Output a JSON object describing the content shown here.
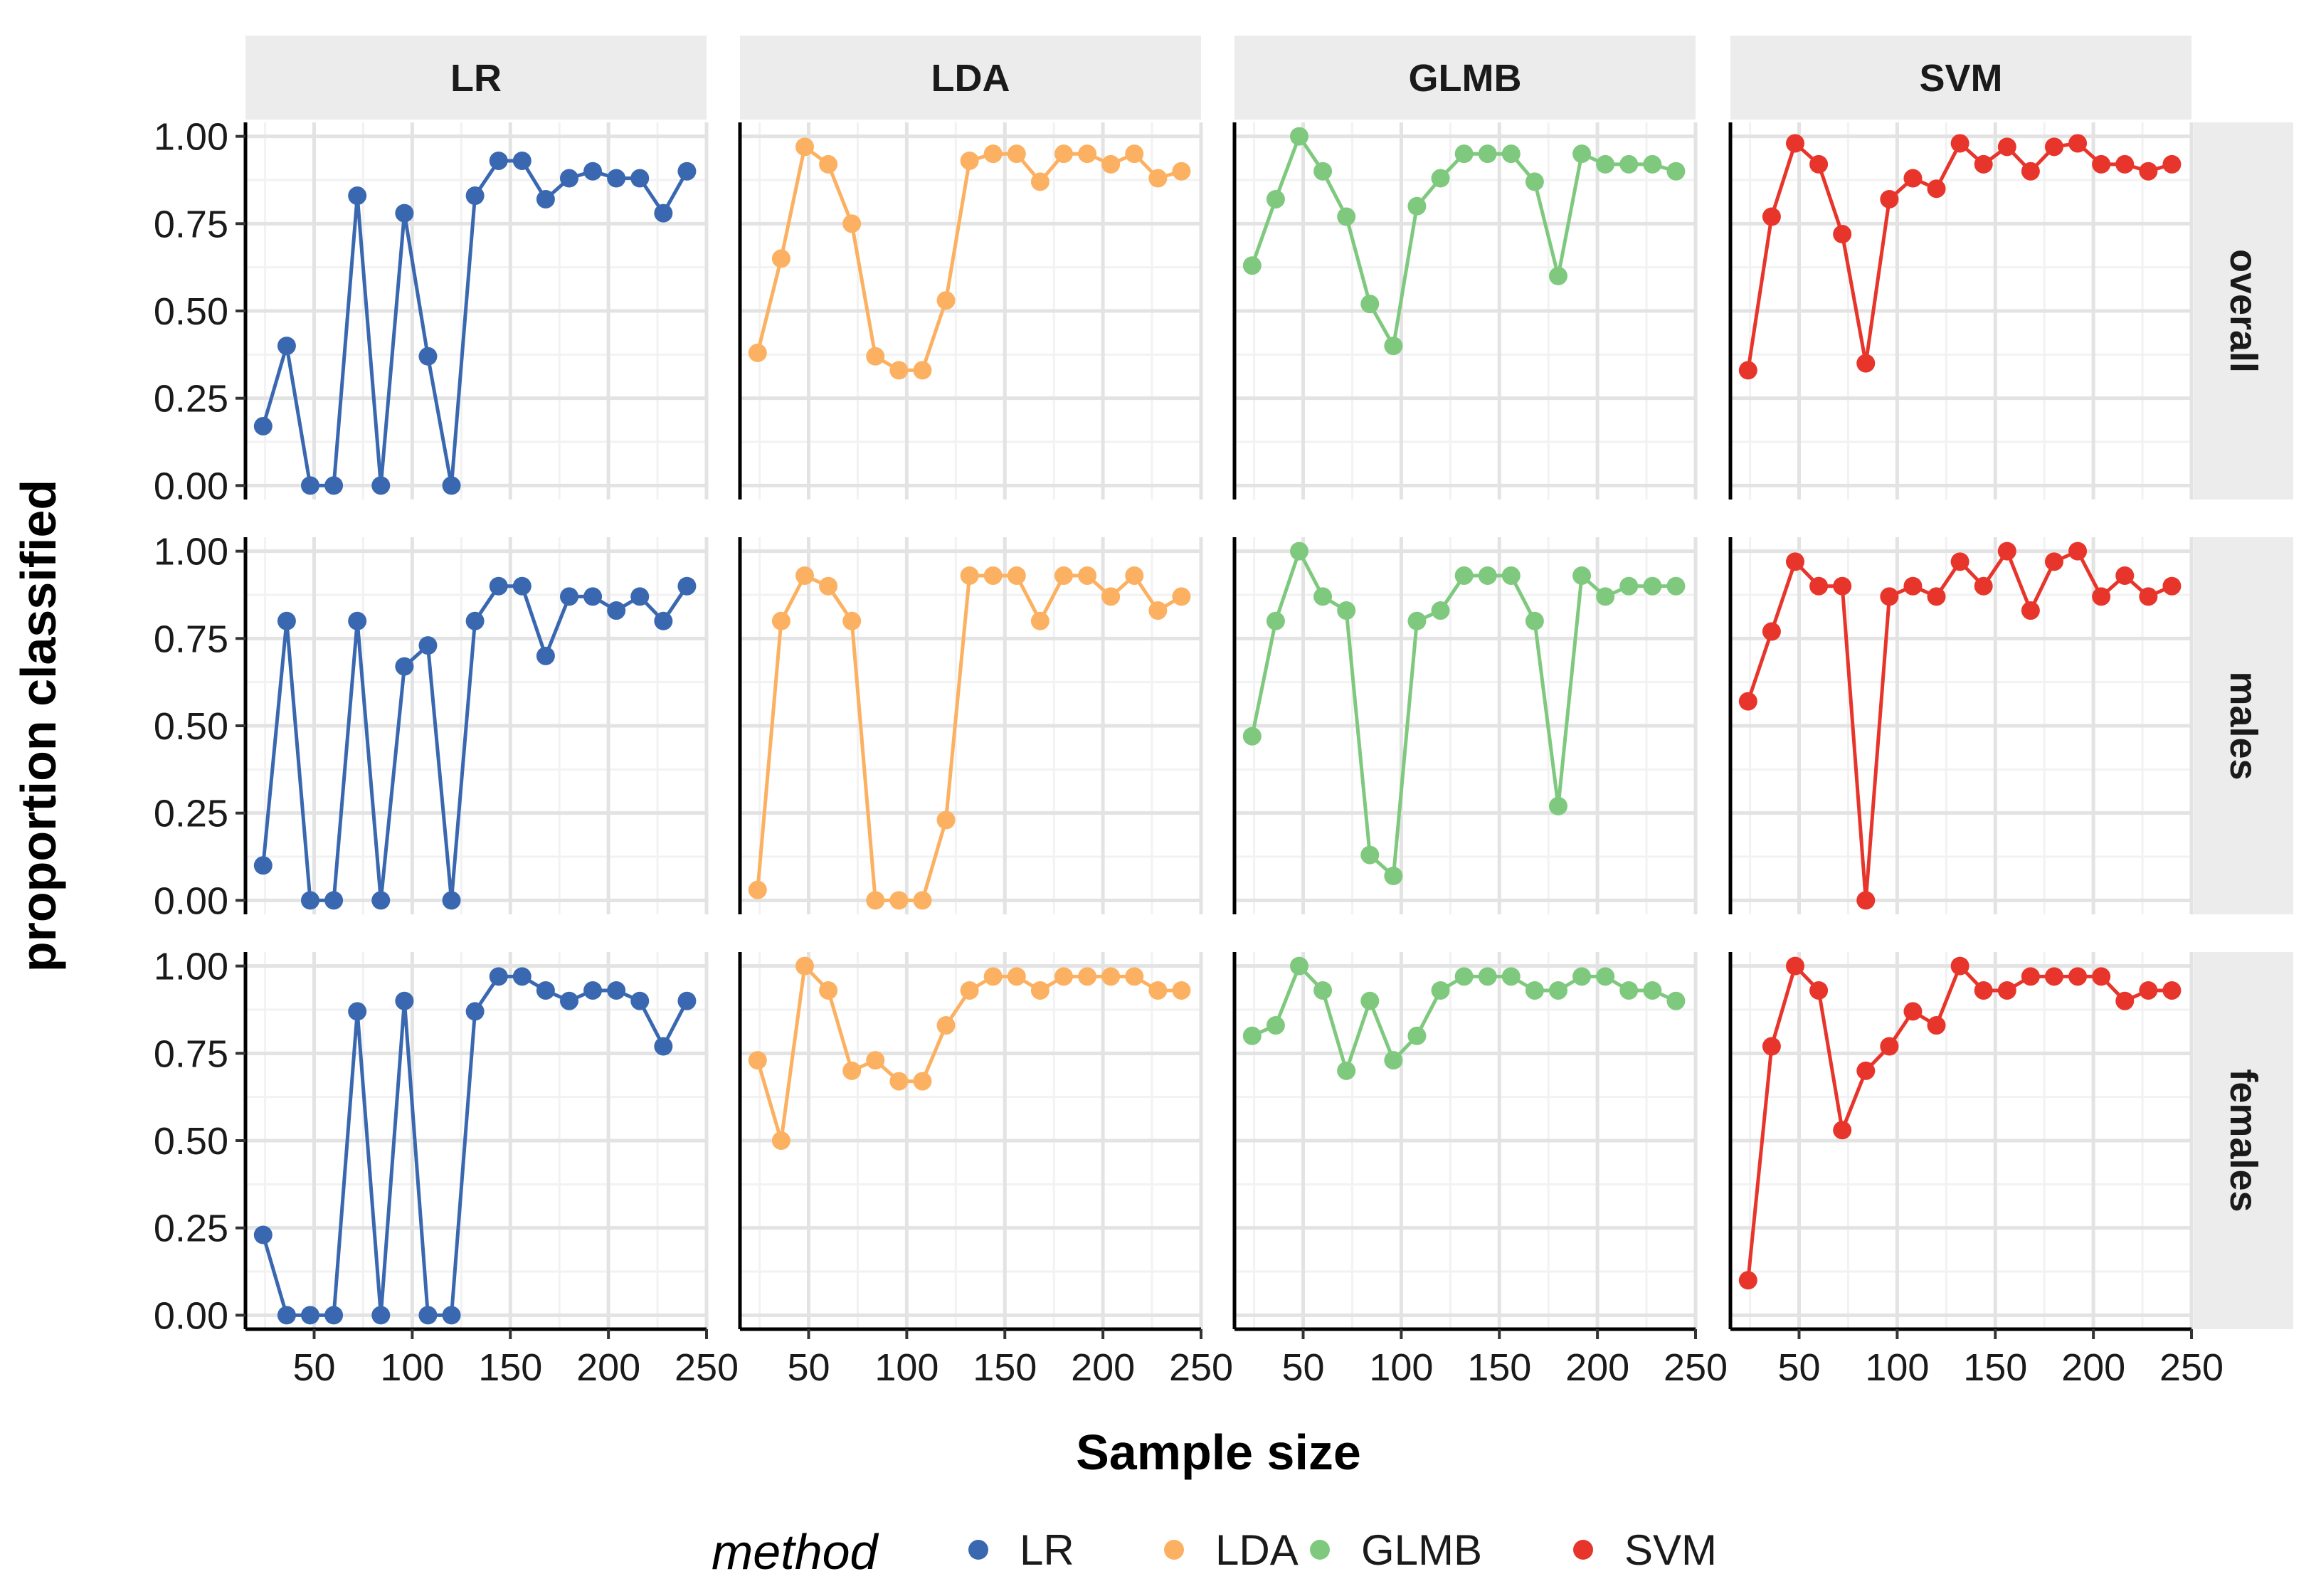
{
  "chart_data": {
    "type": "line",
    "facet_columns": [
      "LR",
      "LDA",
      "GLMB",
      "SVM"
    ],
    "facet_rows": [
      "overall",
      "males",
      "females"
    ],
    "xlabel": "Sample size",
    "ylabel": "proportion classified",
    "xlim": [
      15,
      250
    ],
    "ylim": [
      -0.04,
      1.04
    ],
    "x_ticks": [
      50,
      100,
      150,
      200,
      250
    ],
    "x_tick_labels": [
      "50",
      "100",
      "150",
      "200",
      "250"
    ],
    "y_ticks": [
      0,
      0.25,
      0.5,
      0.75,
      1.0
    ],
    "y_tick_labels": [
      "0.00",
      "0.25",
      "0.50",
      "0.75",
      "1.00"
    ],
    "x": [
      24,
      36,
      48,
      60,
      72,
      84,
      96,
      108,
      120,
      132,
      144,
      156,
      168,
      180,
      192,
      204,
      216,
      228,
      240
    ],
    "legend": {
      "title": "method",
      "position": "bottom",
      "entries": [
        "LR",
        "LDA",
        "GLMB",
        "SVM"
      ]
    },
    "colors": {
      "LR": "#3a68b0",
      "LDA": "#fbb161",
      "GLMB": "#7fc97f",
      "SVM": "#e8352b"
    },
    "series": [
      {
        "method": "LR",
        "group": "overall",
        "values": [
          0.17,
          0.4,
          0.0,
          0.0,
          0.83,
          0.0,
          0.78,
          0.37,
          0.0,
          0.83,
          0.93,
          0.93,
          0.82,
          0.88,
          0.9,
          0.88,
          0.88,
          0.78,
          0.9
        ]
      },
      {
        "method": "LDA",
        "group": "overall",
        "values": [
          0.38,
          0.65,
          0.97,
          0.92,
          0.75,
          0.37,
          0.33,
          0.33,
          0.53,
          0.93,
          0.95,
          0.95,
          0.87,
          0.95,
          0.95,
          0.92,
          0.95,
          0.88,
          0.9
        ]
      },
      {
        "method": "GLMB",
        "group": "overall",
        "values": [
          0.63,
          0.82,
          1.0,
          0.9,
          0.77,
          0.52,
          0.4,
          0.8,
          0.88,
          0.95,
          0.95,
          0.95,
          0.87,
          0.6,
          0.95,
          0.92,
          0.92,
          0.92,
          0.9
        ]
      },
      {
        "method": "SVM",
        "group": "overall",
        "values": [
          0.33,
          0.77,
          0.98,
          0.92,
          0.72,
          0.35,
          0.82,
          0.88,
          0.85,
          0.98,
          0.92,
          0.97,
          0.9,
          0.97,
          0.98,
          0.92,
          0.92,
          0.9,
          0.92
        ]
      },
      {
        "method": "LR",
        "group": "males",
        "values": [
          0.1,
          0.8,
          0.0,
          0.0,
          0.8,
          0.0,
          0.67,
          0.73,
          0.0,
          0.8,
          0.9,
          0.9,
          0.7,
          0.87,
          0.87,
          0.83,
          0.87,
          0.8,
          0.9
        ]
      },
      {
        "method": "LDA",
        "group": "males",
        "values": [
          0.03,
          0.8,
          0.93,
          0.9,
          0.8,
          0.0,
          0.0,
          0.0,
          0.23,
          0.93,
          0.93,
          0.93,
          0.8,
          0.93,
          0.93,
          0.87,
          0.93,
          0.83,
          0.87
        ]
      },
      {
        "method": "GLMB",
        "group": "males",
        "values": [
          0.47,
          0.8,
          1.0,
          0.87,
          0.83,
          0.13,
          0.07,
          0.8,
          0.83,
          0.93,
          0.93,
          0.93,
          0.8,
          0.27,
          0.93,
          0.87,
          0.9,
          0.9,
          0.9
        ]
      },
      {
        "method": "SVM",
        "group": "males",
        "values": [
          0.57,
          0.77,
          0.97,
          0.9,
          0.9,
          0.0,
          0.87,
          0.9,
          0.87,
          0.97,
          0.9,
          1.0,
          0.83,
          0.97,
          1.0,
          0.87,
          0.93,
          0.87,
          0.9
        ]
      },
      {
        "method": "LR",
        "group": "females",
        "values": [
          0.23,
          0.0,
          0.0,
          0.0,
          0.87,
          0.0,
          0.9,
          0.0,
          0.0,
          0.87,
          0.97,
          0.97,
          0.93,
          0.9,
          0.93,
          0.93,
          0.9,
          0.77,
          0.9
        ]
      },
      {
        "method": "LDA",
        "group": "females",
        "values": [
          0.73,
          0.5,
          1.0,
          0.93,
          0.7,
          0.73,
          0.67,
          0.67,
          0.83,
          0.93,
          0.97,
          0.97,
          0.93,
          0.97,
          0.97,
          0.97,
          0.97,
          0.93,
          0.93
        ]
      },
      {
        "method": "GLMB",
        "group": "females",
        "values": [
          0.8,
          0.83,
          1.0,
          0.93,
          0.7,
          0.9,
          0.73,
          0.8,
          0.93,
          0.97,
          0.97,
          0.97,
          0.93,
          0.93,
          0.97,
          0.97,
          0.93,
          0.93,
          0.9
        ]
      },
      {
        "method": "SVM",
        "group": "females",
        "values": [
          0.1,
          0.77,
          1.0,
          0.93,
          0.53,
          0.7,
          0.77,
          0.87,
          0.83,
          1.0,
          0.93,
          0.93,
          0.97,
          0.97,
          0.97,
          0.97,
          0.9,
          0.93,
          0.93
        ]
      }
    ]
  }
}
